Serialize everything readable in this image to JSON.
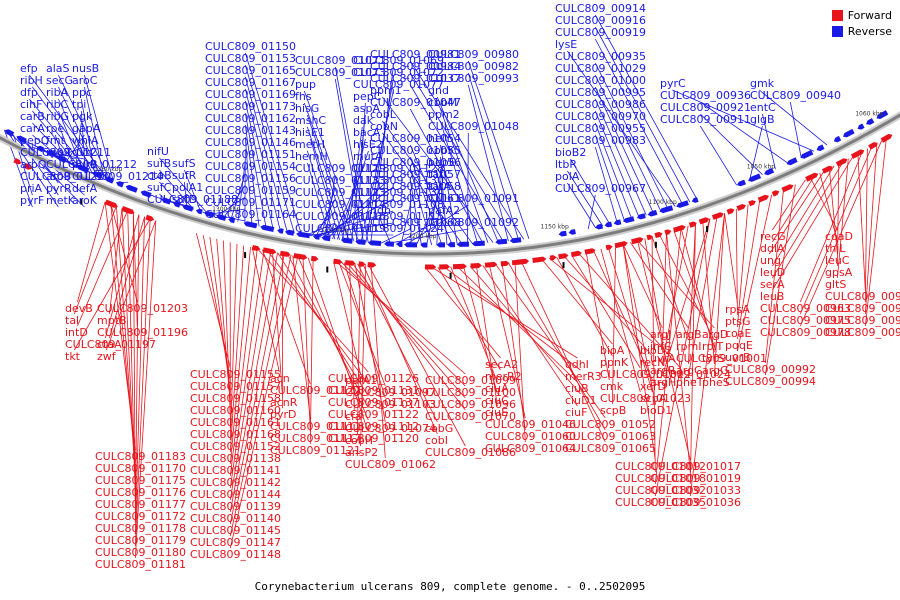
{
  "legend": [
    {
      "name": "Forward",
      "color": "#e8141c"
    },
    {
      "name": "Reverse",
      "color": "#1a1ae6"
    }
  ],
  "caption": "Corynebacterium ulcerans 809, complete genome. - 0..2502095",
  "scale_ticks": [
    "1050 kbp",
    "1100 kbp",
    "1150 kbp",
    "1200 kbp",
    "1250 kbp",
    "1300 kbp",
    "1350 kbp",
    "1060 kbp"
  ],
  "reverse_labels": [
    "pyrF",
    "metK",
    "aroK",
    "priA",
    "pyrR",
    "defA",
    "CULC809_01220",
    "aroB",
    "CULC809_01214",
    "aroQ",
    "CULC809_01212",
    "pyrB",
    "CULC809_01211",
    "rpoZ",
    "uvrC",
    "pepQ",
    "fmt",
    "whiA",
    "carA",
    "rpe",
    "gapA",
    "carB",
    "ribG",
    "pgk",
    "cihF",
    "ribC",
    "tpi",
    "dfp",
    "ribA",
    "ppc",
    "ribH",
    "secG",
    "aroC",
    "efp",
    "alaS",
    "nusB",
    "CULC809_01188",
    "sufD",
    "sufC",
    "polA1",
    "ctaB",
    "sufR",
    "sufB",
    "sufS",
    "nifU",
    "CULC809_01164",
    "CULC809_01171",
    "CULC809_01159",
    "CULC809_01156",
    "CULC809_01154",
    "CULC809_01151",
    "CULC809_01146",
    "CULC809_01143",
    "CULC809_01162",
    "CULC809_01173",
    "CULC809_01169",
    "CULC809_01167",
    "CULC809_01165",
    "CULC809_01153",
    "CULC809_01150",
    "CULC809_01119",
    "CULC809_01124",
    "CULC809_01116",
    "CULC809_01115",
    "CULC809_01114",
    "CULC809_01108",
    "CULC809_01123",
    "CULC809_01134",
    "CULC809_01133",
    "CULC809_01130",
    "CULC809_01129",
    "CULC809_01128",
    "hemH",
    "mutA",
    "metH",
    "hisE2",
    "hisE1",
    "bacA",
    "mshC",
    "dak",
    "hisG",
    "aspA",
    "fhs",
    "pepC",
    "pup",
    "CULC809_01077",
    "CULC809_01073",
    "CULC809_01072",
    "CULC809_01071",
    "CULC809_01069",
    "CULC809_01068",
    "CULC809_01092",
    "ndh",
    "pafA2",
    "CULC809_01061",
    "CULC809_01091",
    "CULC809_01058",
    "tatA",
    "CULC809_01057",
    "tatC",
    "CULC809_01056",
    "pepE",
    "CULC809_01055",
    "cobK",
    "CULC809_01054",
    "helY",
    "cobN",
    "CULC809_01048",
    "cobL",
    "ppm2",
    "CULC809_01047",
    "cobM",
    "ppm1",
    "gnd",
    "CULC809_01037",
    "CULC809_00993",
    "CULC809_00984",
    "CULC809_00982",
    "CULC809_00981",
    "CULC809_00980",
    "CULC809_00967",
    "polA",
    "ltbR",
    "bioB2",
    "CULC809_00983",
    "CULC809_00955",
    "CULC809_00970",
    "CULC809_00986",
    "CULC809_00995",
    "CULC809_01000",
    "CULC809_01029",
    "CULC809_00935",
    "lysE",
    "CULC809_00919",
    "CULC809_00916",
    "CULC809_00914",
    "CULC809_00911",
    "glgB",
    "CULC809_00921",
    "entC",
    "CULC809_00936",
    "CULC809_00940",
    "pyrC",
    "gmk"
  ],
  "forward_labels": [
    "devB",
    "CULC809_01203",
    "tal",
    "mptB",
    "intD",
    "CULC809_01196",
    "CULC809_01197",
    "ctaA",
    "tkt",
    "zwf",
    "CULC809_01183",
    "CULC809_01170",
    "CULC809_01175",
    "CULC809_01176",
    "CULC809_01177",
    "CULC809_01172",
    "CULC809_01178",
    "CULC809_01179",
    "CULC809_01180",
    "CULC809_01181",
    "CULC809_01155",
    "CULC809_01157",
    "CULC809_01158",
    "CULC809_01160",
    "CULC809_01161",
    "CULC809_01168",
    "CULC809_01152",
    "CULC809_01138",
    "CULC809_01141",
    "CULC809_01142",
    "CULC809_01144",
    "CULC809_01139",
    "CULC809_01140",
    "CULC809_01145",
    "CULC809_01147",
    "CULC809_01148",
    "acn",
    "CULC809_01126",
    "CULC809_01127",
    "CULC809_01131",
    "acnR",
    "CULC809_01137",
    "pyrD",
    "CULC809_01122",
    "CULC809_01111",
    "CULC809_01112",
    "CULC809_01117",
    "CULC809_01120",
    "CULC809_01121",
    "pafA1",
    "CULC809_01099",
    "CULC809_01097",
    "CULC809_01100",
    "CULC809_01103",
    "CULC809_01096",
    "cfa",
    "CULC809_01070",
    "CULC809_01074",
    "cobG",
    "cobH",
    "cobI",
    "ansP2",
    "CULC809_01086",
    "CULC809_01062",
    "secA2",
    "odhI",
    "merR2",
    "merR3",
    "ciuA",
    "ciuB",
    "ciuC",
    "ciuD1",
    "ciuE",
    "ciuF",
    "CULC809_01046",
    "CULC809_01052",
    "CULC809_01060",
    "CULC809_01063",
    "CULC809_01064",
    "CULC809_01065",
    "bioA",
    "bioD2",
    "ppnK",
    "recN",
    "CULC809_01022",
    "CULC809_01024",
    "cmk",
    "xerD",
    "CULC809_01023",
    "scpA",
    "scpB",
    "bioD1",
    "argJ",
    "argB",
    "argD",
    "infC",
    "rpmI",
    "rplT",
    "uvrA",
    "CULC809_01001",
    "tyrS",
    "argR",
    "argC",
    "argG",
    "argH",
    "pheT",
    "pheS",
    "CULC809_01012",
    "CULC809_01017",
    "CULC809_01018",
    "CULC809_01019",
    "CULC809_01032",
    "CULC809_01033",
    "CULC809_01035",
    "CULC809_01036",
    "rpsA",
    "ptsG",
    "coaE",
    "pqqE",
    "uvrB",
    "CULC809_00992",
    "CULC809_00994",
    "recG",
    "coaD",
    "ddlA",
    "thiL",
    "ung",
    "leuC",
    "leuD",
    "gpsA",
    "serA",
    "gltS",
    "leuB",
    "CULC809_00961",
    "CULC809_00963",
    "CULC809_00973",
    "CULC809_00975",
    "CULC809_00976",
    "CULC809_00978",
    "CULC809_00979"
  ]
}
